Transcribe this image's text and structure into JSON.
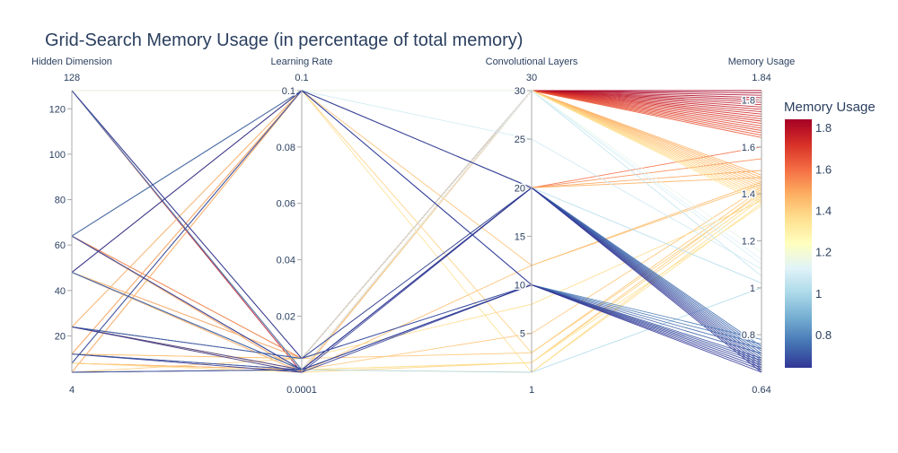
{
  "chart_data": {
    "type": "parallel_coordinates",
    "title": "Grid-Search Memory Usage (in percentage of total memory)",
    "dimensions": [
      {
        "label": "Hidden Dimension",
        "range": [
          4,
          128
        ],
        "range_labels": [
          "4",
          "128"
        ],
        "ticks": [
          20,
          40,
          60,
          80,
          100,
          120
        ],
        "tick_labels": [
          "20",
          "40",
          "60",
          "80",
          "100",
          "120"
        ]
      },
      {
        "label": "Learning Rate",
        "range": [
          0.0001,
          0.1
        ],
        "range_labels": [
          "0.0001",
          "0.1"
        ],
        "ticks": [
          0.02,
          0.04,
          0.06,
          0.08,
          0.1
        ],
        "tick_labels": [
          "0.02",
          "0.04",
          "0.06",
          "0.08",
          "0.1"
        ]
      },
      {
        "label": "Convolutional Layers",
        "range": [
          1,
          30
        ],
        "range_labels": [
          "1",
          "30"
        ],
        "ticks": [
          5,
          10,
          15,
          20,
          25,
          30
        ],
        "tick_labels": [
          "5",
          "10",
          "15",
          "20",
          "25",
          "30"
        ]
      },
      {
        "label": "Memory Usage",
        "range": [
          0.64,
          1.84
        ],
        "range_labels": [
          "0.64",
          "1.84"
        ],
        "ticks": [
          0.8,
          1,
          1.2,
          1.4,
          1.6,
          1.8
        ],
        "tick_labels": [
          "0.8",
          "1",
          "1.2",
          "1.4",
          "1.6",
          "1.8"
        ]
      }
    ],
    "colorscale": {
      "name": "RdYlBu (reversed)",
      "stops": [
        "#313695",
        "#4575b4",
        "#74add1",
        "#abd9e9",
        "#e0f3f8",
        "#ffffbf",
        "#fee090",
        "#fdae61",
        "#f46d43",
        "#d73027",
        "#a50026"
      ],
      "cmin": 0.64,
      "cmax": 1.84
    },
    "colorbar": {
      "title": "Memory Usage",
      "ticks": [
        0.8,
        1,
        1.2,
        1.4,
        1.6,
        1.8
      ],
      "tick_labels": [
        "0.8",
        "1",
        "1.2",
        "1.4",
        "1.6",
        "1.8"
      ]
    },
    "rows": [
      [
        128,
        0.1,
        30,
        1.84
      ],
      [
        128,
        0.005,
        30,
        1.83
      ],
      [
        128,
        0.001,
        30,
        1.82
      ],
      [
        128,
        0.0001,
        30,
        1.81
      ],
      [
        64,
        0.1,
        30,
        1.8
      ],
      [
        64,
        0.005,
        30,
        1.79
      ],
      [
        64,
        0.001,
        30,
        1.78
      ],
      [
        64,
        0.0001,
        30,
        1.77
      ],
      [
        48,
        0.1,
        30,
        1.76
      ],
      [
        48,
        0.005,
        30,
        1.75
      ],
      [
        48,
        0.001,
        30,
        1.74
      ],
      [
        48,
        0.0001,
        30,
        1.73
      ],
      [
        24,
        0.1,
        30,
        1.72
      ],
      [
        24,
        0.005,
        30,
        1.71
      ],
      [
        24,
        0.001,
        30,
        1.7
      ],
      [
        12,
        0.1,
        30,
        1.69
      ],
      [
        12,
        0.001,
        30,
        1.68
      ],
      [
        8,
        0.1,
        30,
        1.67
      ],
      [
        8,
        0.001,
        30,
        1.66
      ],
      [
        4,
        0.1,
        30,
        1.65
      ],
      [
        4,
        0.001,
        30,
        1.64
      ],
      [
        128,
        0.1,
        20,
        1.6
      ],
      [
        128,
        0.001,
        20,
        1.55
      ],
      [
        64,
        0.005,
        20,
        1.5
      ],
      [
        48,
        0.001,
        20,
        1.47
      ],
      [
        24,
        0.0001,
        12,
        1.45
      ],
      [
        12,
        0.1,
        12,
        1.44
      ],
      [
        8,
        0.001,
        5,
        1.43
      ],
      [
        4,
        0.005,
        3,
        1.42
      ],
      [
        128,
        0.001,
        2,
        1.41
      ],
      [
        64,
        0.1,
        3,
        1.4
      ],
      [
        48,
        0.0001,
        2,
        1.39
      ],
      [
        24,
        0.001,
        1,
        1.38
      ],
      [
        12,
        0.005,
        8,
        1.37
      ],
      [
        8,
        0.1,
        1,
        1.36
      ],
      [
        4,
        0.001,
        2,
        1.35
      ],
      [
        64,
        0.001,
        30,
        1.48
      ],
      [
        48,
        0.1,
        30,
        1.47
      ],
      [
        24,
        0.001,
        30,
        1.46
      ],
      [
        12,
        0.005,
        30,
        1.45
      ],
      [
        8,
        0.001,
        30,
        1.44
      ],
      [
        4,
        0.1,
        30,
        1.43
      ],
      [
        128,
        0.001,
        30,
        1.42
      ],
      [
        64,
        0.0001,
        30,
        1.41
      ],
      [
        48,
        0.005,
        30,
        1.4
      ],
      [
        24,
        0.1,
        30,
        1.39
      ],
      [
        12,
        0.001,
        30,
        1.38
      ],
      [
        8,
        0.0001,
        30,
        1.37
      ],
      [
        4,
        0.001,
        30,
        1.36
      ],
      [
        128,
        0.1,
        30,
        1.15
      ],
      [
        64,
        0.001,
        30,
        1.1
      ],
      [
        24,
        0.005,
        30,
        1.05
      ],
      [
        12,
        0.001,
        30,
        1.12
      ],
      [
        8,
        0.1,
        25,
        1.08
      ],
      [
        4,
        0.001,
        20,
        1.02
      ],
      [
        48,
        0.001,
        1,
        1.0
      ],
      [
        128,
        0.001,
        20,
        0.75
      ],
      [
        64,
        0.1,
        20,
        0.74
      ],
      [
        48,
        0.001,
        20,
        0.73
      ],
      [
        24,
        0.005,
        20,
        0.72
      ],
      [
        12,
        0.001,
        20,
        0.71
      ],
      [
        8,
        0.1,
        20,
        0.7
      ],
      [
        4,
        0.001,
        20,
        0.69
      ],
      [
        128,
        0.005,
        20,
        0.68
      ],
      [
        64,
        0.001,
        20,
        0.67
      ],
      [
        48,
        0.1,
        20,
        0.66
      ],
      [
        24,
        0.001,
        20,
        0.65
      ],
      [
        12,
        0.0001,
        20,
        0.64
      ],
      [
        128,
        0.001,
        10,
        0.78
      ],
      [
        64,
        0.1,
        10,
        0.76
      ],
      [
        48,
        0.001,
        10,
        0.74
      ],
      [
        24,
        0.005,
        10,
        0.72
      ],
      [
        12,
        0.001,
        10,
        0.7
      ],
      [
        8,
        0.1,
        10,
        0.69
      ],
      [
        4,
        0.001,
        10,
        0.68
      ],
      [
        128,
        0.005,
        10,
        0.67
      ],
      [
        64,
        0.001,
        10,
        0.66
      ],
      [
        48,
        0.1,
        10,
        0.65
      ],
      [
        24,
        0.0001,
        10,
        0.64
      ]
    ]
  }
}
